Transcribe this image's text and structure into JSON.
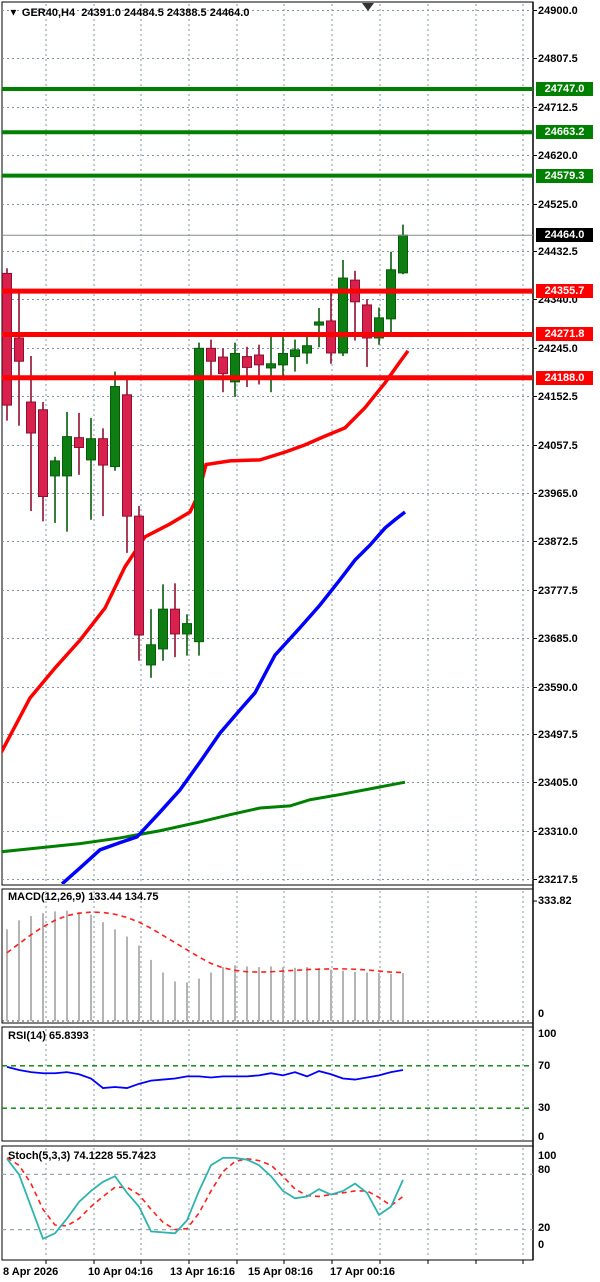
{
  "header": {
    "dropdown_icon": "▼",
    "symbol_timeframe": "GER40,H4",
    "open": "24391.0",
    "high": "24484.5",
    "low": "24388.5",
    "close": "24464.0"
  },
  "colors": {
    "bull_fill": "#0e7d12",
    "bull_stroke": "#075c0a",
    "bear_fill": "#d8214d",
    "bear_stroke": "#8f0f30",
    "resistance_green": "#008000",
    "support_red": "#ff0000",
    "ma_fast": "#ff0000",
    "ma_mid": "#0000ff",
    "ma_slow": "#008000",
    "macd_hist": "#b4b4b4",
    "macd_signal": "#ff1f1f",
    "rsi_line": "#0000ff",
    "rsi_levels": "#008000",
    "stoch_k": "#2fb3ad",
    "stoch_d": "#ff1f1f",
    "grid": "#8494a8",
    "current_price_line": "#888888",
    "current_badge_bg": "#000000"
  },
  "chart_data": {
    "type": "candlestick",
    "symbol": "GER40",
    "timeframe": "H4",
    "title": "GER40,H4 24391.0 24484.5 24388.5 24464.0",
    "current_bar": {
      "open": 24391.0,
      "high": 24484.5,
      "low": 24388.5,
      "close": 24464.0
    },
    "price_axis": {
      "min": 23217.5,
      "max": 24900.0,
      "tick_labels": [
        "24900.0",
        "24807.5",
        "24712.5",
        "24620.0",
        "24525.0",
        "24432.5",
        "24340.0",
        "24245.0",
        "24152.5",
        "24057.5",
        "23965.0",
        "23872.5",
        "23777.5",
        "23685.0",
        "23590.0",
        "23497.5",
        "23405.0",
        "23310.0",
        "23217.5"
      ]
    },
    "level_lines": [
      {
        "label": "24747.0",
        "price": 24747.0,
        "kind": "resistance",
        "color": "#008000"
      },
      {
        "label": "24663.2",
        "price": 24663.2,
        "kind": "resistance",
        "color": "#008000"
      },
      {
        "label": "24579.3",
        "price": 24579.3,
        "kind": "resistance",
        "color": "#008000"
      },
      {
        "label": "24464.0",
        "price": 24464.0,
        "kind": "current",
        "color": "#000000"
      },
      {
        "label": "24355.7",
        "price": 24355.7,
        "kind": "support",
        "color": "#ff0000"
      },
      {
        "label": "24271.8",
        "price": 24271.8,
        "kind": "support",
        "color": "#ff0000"
      },
      {
        "label": "24188.0",
        "price": 24188.0,
        "kind": "support",
        "color": "#ff0000"
      }
    ],
    "marker": {
      "glyph": "▼",
      "x": 368
    },
    "candles": [
      [
        24390,
        24400,
        24105,
        24135
      ],
      [
        24265,
        24357,
        24095,
        24220
      ],
      [
        24141,
        24230,
        23930,
        24081
      ],
      [
        24126,
        24141,
        23910,
        23958
      ],
      [
        23998,
        24035,
        23907,
        24027
      ],
      [
        23998,
        24122,
        23890,
        24074
      ],
      [
        24072,
        24120,
        24000,
        24053
      ],
      [
        24029,
        24110,
        23913,
        24070
      ],
      [
        24070,
        24090,
        23920,
        24019
      ],
      [
        24016,
        24200,
        24008,
        24171
      ],
      [
        24155,
        24190,
        23849,
        23920
      ],
      [
        23920,
        23940,
        23640,
        23690
      ],
      [
        23632,
        23740,
        23607,
        23671
      ],
      [
        23663,
        23788,
        23640,
        23740
      ],
      [
        23740,
        23790,
        23647,
        23692
      ],
      [
        23692,
        23730,
        23650,
        23712
      ],
      [
        23677,
        24256,
        23650,
        24245
      ],
      [
        24245,
        24262,
        24188,
        24220
      ],
      [
        24228,
        24245,
        24160,
        24196
      ],
      [
        24180,
        24256,
        24151,
        24235
      ],
      [
        24229,
        24248,
        24170,
        24208
      ],
      [
        24232,
        24252,
        24175,
        24213
      ],
      [
        24207,
        24268,
        24160,
        24215
      ],
      [
        24213,
        24270,
        24190,
        24235
      ],
      [
        24229,
        24262,
        24200,
        24242
      ],
      [
        24236,
        24272,
        24215,
        24250
      ],
      [
        24290,
        24323,
        24247,
        24296
      ],
      [
        24298,
        24355,
        24215,
        24236
      ],
      [
        24236,
        24416,
        24230,
        24381
      ],
      [
        24377,
        24395,
        24260,
        24335
      ],
      [
        24329,
        24340,
        24209,
        24265
      ],
      [
        24265,
        24324,
        24252,
        24304
      ],
      [
        24302,
        24432,
        24267,
        24397
      ],
      [
        24391,
        24484.5,
        24388.5,
        24464
      ]
    ],
    "ma_fast_red": [
      [
        0,
        23458
      ],
      [
        30,
        23568
      ],
      [
        55,
        23626
      ],
      [
        80,
        23680
      ],
      [
        105,
        23742
      ],
      [
        125,
        23822
      ],
      [
        145,
        23880
      ],
      [
        170,
        23905
      ],
      [
        190,
        23928
      ],
      [
        198,
        23960
      ],
      [
        206,
        24020
      ],
      [
        230,
        24027
      ],
      [
        260,
        24029
      ],
      [
        285,
        24044
      ],
      [
        305,
        24058
      ],
      [
        325,
        24075
      ],
      [
        345,
        24091
      ],
      [
        365,
        24130
      ],
      [
        385,
        24178
      ],
      [
        400,
        24219
      ],
      [
        408,
        24240
      ]
    ],
    "ma_mid_blue": [
      [
        62,
        23208
      ],
      [
        80,
        23239
      ],
      [
        100,
        23274
      ],
      [
        120,
        23288
      ],
      [
        137,
        23299
      ],
      [
        160,
        23347
      ],
      [
        180,
        23390
      ],
      [
        200,
        23444
      ],
      [
        220,
        23500
      ],
      [
        240,
        23545
      ],
      [
        255,
        23578
      ],
      [
        275,
        23651
      ],
      [
        300,
        23704
      ],
      [
        320,
        23748
      ],
      [
        340,
        23797
      ],
      [
        355,
        23835
      ],
      [
        370,
        23864
      ],
      [
        385,
        23897
      ],
      [
        395,
        23913
      ],
      [
        405,
        23928
      ]
    ],
    "ma_slow_green": [
      [
        0,
        23270
      ],
      [
        40,
        23278
      ],
      [
        80,
        23286
      ],
      [
        120,
        23297
      ],
      [
        160,
        23311
      ],
      [
        200,
        23328
      ],
      [
        230,
        23342
      ],
      [
        260,
        23355
      ],
      [
        290,
        23359
      ],
      [
        310,
        23371
      ],
      [
        340,
        23381
      ],
      [
        370,
        23392
      ],
      [
        405,
        23405
      ]
    ],
    "time_axis_labels": [
      "8 Apr 2026",
      "10 Apr 04:16",
      "13 Apr 16:16",
      "15 Apr 08:16",
      "17 Apr 00:16"
    ],
    "time_axis_x": [
      3,
      88,
      170,
      248,
      330
    ],
    "macd": {
      "title": "MACD(12,26,9)",
      "values": "133.44 134.75",
      "scale_top": "333.82",
      "scale_bottom": "0",
      "ylim": [
        0,
        333.82
      ],
      "histogram": [
        255,
        280,
        292,
        300,
        305,
        307,
        303,
        296,
        275,
        255,
        235,
        210,
        170,
        135,
        110,
        107,
        118,
        135,
        150,
        155,
        152,
        150,
        152,
        150,
        148,
        150,
        147,
        143,
        140,
        137,
        135,
        133,
        131,
        133
      ],
      "signal": [
        190,
        215,
        240,
        262,
        280,
        293,
        300,
        303,
        302,
        297,
        288,
        275,
        258,
        238,
        218,
        198,
        178,
        160,
        148,
        141,
        137,
        136,
        137,
        139,
        141,
        143,
        144,
        145,
        145,
        144,
        142,
        139,
        136,
        135
      ]
    },
    "rsi": {
      "title": "RSI(14)",
      "value": "65.8393",
      "scale_labels": [
        "100",
        "70",
        "30",
        "0"
      ],
      "levels": [
        70,
        30
      ],
      "ylim": [
        0,
        100
      ],
      "series": [
        69,
        66,
        64,
        63,
        63,
        64,
        62,
        58,
        49,
        50,
        49,
        53,
        56,
        57,
        58,
        60,
        60,
        59,
        60,
        60,
        60,
        61,
        63,
        61,
        64,
        60,
        65,
        62,
        58,
        57,
        59,
        61,
        64,
        66
      ]
    },
    "stoch": {
      "title": "Stoch(5,3,3)",
      "values": "74.1228 55.7423",
      "scale_labels": [
        "100",
        "80",
        "20",
        "0"
      ],
      "levels": [
        80,
        20
      ],
      "ylim": [
        0,
        100
      ],
      "k": [
        97,
        80,
        45,
        10,
        16,
        32,
        50,
        62,
        72,
        78,
        60,
        45,
        18,
        17,
        16,
        30,
        62,
        90,
        98,
        98,
        96,
        90,
        78,
        62,
        54,
        56,
        64,
        58,
        62,
        70,
        60,
        36,
        45,
        74
      ],
      "d": [
        98,
        90,
        70,
        42,
        25,
        24,
        32,
        45,
        56,
        66,
        66,
        58,
        42,
        28,
        20,
        21,
        38,
        62,
        83,
        94,
        97,
        95,
        90,
        78,
        64,
        57,
        56,
        58,
        60,
        62,
        62,
        55,
        46,
        56
      ]
    }
  }
}
